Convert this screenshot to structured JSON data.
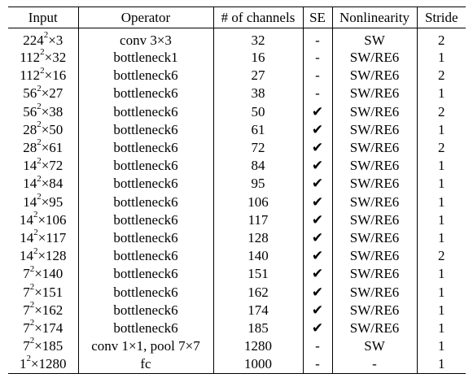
{
  "headers": [
    "Input",
    "Operator",
    "# of channels",
    "SE",
    "Nonlinearity",
    "Stride"
  ],
  "rows": [
    {
      "input_base": "224",
      "input_exp": "2",
      "input_tail": "×3",
      "operator": "conv 3×3",
      "channels": "32",
      "se": "-",
      "nonlinearity": "SW",
      "stride": "2"
    },
    {
      "input_base": "112",
      "input_exp": "2",
      "input_tail": "×32",
      "operator": "bottleneck1",
      "channels": "16",
      "se": "-",
      "nonlinearity": "SW/RE6",
      "stride": "1"
    },
    {
      "input_base": "112",
      "input_exp": "2",
      "input_tail": "×16",
      "operator": "bottleneck6",
      "channels": "27",
      "se": "-",
      "nonlinearity": "SW/RE6",
      "stride": "2"
    },
    {
      "input_base": "56",
      "input_exp": "2",
      "input_tail": "×27",
      "operator": "bottleneck6",
      "channels": "38",
      "se": "-",
      "nonlinearity": "SW/RE6",
      "stride": "1"
    },
    {
      "input_base": "56",
      "input_exp": "2",
      "input_tail": "×38",
      "operator": "bottleneck6",
      "channels": "50",
      "se": "✔",
      "nonlinearity": "SW/RE6",
      "stride": "2"
    },
    {
      "input_base": "28",
      "input_exp": "2",
      "input_tail": "×50",
      "operator": "bottleneck6",
      "channels": "61",
      "se": "✔",
      "nonlinearity": "SW/RE6",
      "stride": "1"
    },
    {
      "input_base": "28",
      "input_exp": "2",
      "input_tail": "×61",
      "operator": "bottleneck6",
      "channels": "72",
      "se": "✔",
      "nonlinearity": "SW/RE6",
      "stride": "2"
    },
    {
      "input_base": "14",
      "input_exp": "2",
      "input_tail": "×72",
      "operator": "bottleneck6",
      "channels": "84",
      "se": "✔",
      "nonlinearity": "SW/RE6",
      "stride": "1"
    },
    {
      "input_base": "14",
      "input_exp": "2",
      "input_tail": "×84",
      "operator": "bottleneck6",
      "channels": "95",
      "se": "✔",
      "nonlinearity": "SW/RE6",
      "stride": "1"
    },
    {
      "input_base": "14",
      "input_exp": "2",
      "input_tail": "×95",
      "operator": "bottleneck6",
      "channels": "106",
      "se": "✔",
      "nonlinearity": "SW/RE6",
      "stride": "1"
    },
    {
      "input_base": "14",
      "input_exp": "2",
      "input_tail": "×106",
      "operator": "bottleneck6",
      "channels": "117",
      "se": "✔",
      "nonlinearity": "SW/RE6",
      "stride": "1"
    },
    {
      "input_base": "14",
      "input_exp": "2",
      "input_tail": "×117",
      "operator": "bottleneck6",
      "channels": "128",
      "se": "✔",
      "nonlinearity": "SW/RE6",
      "stride": "1"
    },
    {
      "input_base": "14",
      "input_exp": "2",
      "input_tail": "×128",
      "operator": "bottleneck6",
      "channels": "140",
      "se": "✔",
      "nonlinearity": "SW/RE6",
      "stride": "2"
    },
    {
      "input_base": "7",
      "input_exp": "2",
      "input_tail": "×140",
      "operator": "bottleneck6",
      "channels": "151",
      "se": "✔",
      "nonlinearity": "SW/RE6",
      "stride": "1"
    },
    {
      "input_base": "7",
      "input_exp": "2",
      "input_tail": "×151",
      "operator": "bottleneck6",
      "channels": "162",
      "se": "✔",
      "nonlinearity": "SW/RE6",
      "stride": "1"
    },
    {
      "input_base": "7",
      "input_exp": "2",
      "input_tail": "×162",
      "operator": "bottleneck6",
      "channels": "174",
      "se": "✔",
      "nonlinearity": "SW/RE6",
      "stride": "1"
    },
    {
      "input_base": "7",
      "input_exp": "2",
      "input_tail": "×174",
      "operator": "bottleneck6",
      "channels": "185",
      "se": "✔",
      "nonlinearity": "SW/RE6",
      "stride": "1"
    },
    {
      "input_base": "7",
      "input_exp": "2",
      "input_tail": "×185",
      "operator": "conv 1×1, pool 7×7",
      "channels": "1280",
      "se": "-",
      "nonlinearity": "SW",
      "stride": "1"
    },
    {
      "input_base": "1",
      "input_exp": "2",
      "input_tail": "×1280",
      "operator": "fc",
      "channels": "1000",
      "se": "-",
      "nonlinearity": "-",
      "stride": "1"
    }
  ]
}
